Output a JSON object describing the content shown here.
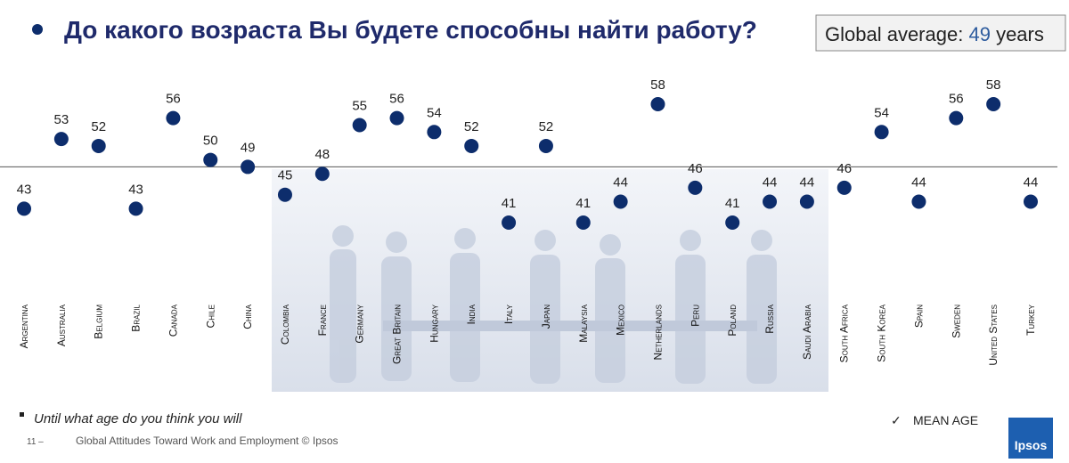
{
  "chart_data": {
    "type": "dot",
    "title": "До какого возраста Вы будете способны найти работу?",
    "average_label": "Global average:",
    "average": 49,
    "average_unit": "years",
    "categories": [
      "Argentina",
      "Australia",
      "Belgium",
      "Brazil",
      "Canada",
      "Chile",
      "China",
      "Colombia",
      "France",
      "Germany",
      "Great Britain",
      "Hungary",
      "India",
      "Italy",
      "Japan",
      "Malaysia",
      "Mexico",
      "Netherlands",
      "Peru",
      "Poland",
      "Russia",
      "Saudi Arabia",
      "South Africa",
      "South Korea",
      "Spain",
      "Sweden",
      "United States",
      "Turkey"
    ],
    "values": [
      43,
      53,
      52,
      43,
      56,
      50,
      49,
      45,
      48,
      55,
      56,
      54,
      52,
      41,
      52,
      41,
      44,
      58,
      46,
      41,
      44,
      44,
      46,
      54,
      44,
      56,
      58,
      44
    ],
    "color": "#0d2d6c",
    "legend": "MEAN AGE",
    "footnote": "Until what age do you think you will",
    "page_number": "11 –",
    "footer": "Global Attitudes Toward Work and Employment © Ipsos",
    "logo": "Ipsos"
  }
}
